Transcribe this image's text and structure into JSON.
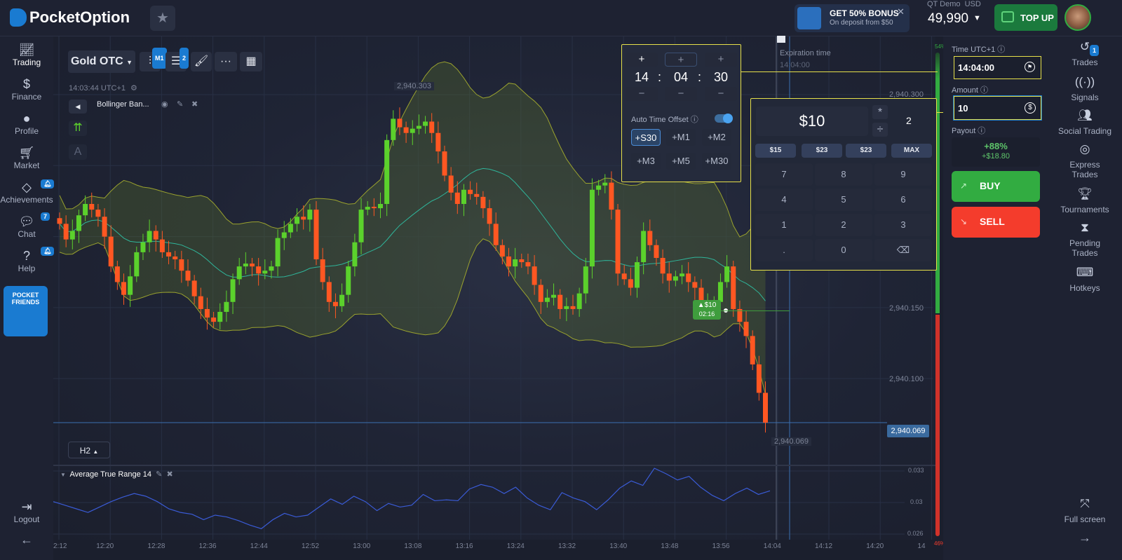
{
  "header": {
    "logo": "PocketOption",
    "bonus_title": "GET 50% BONUS",
    "bonus_sub": "On deposit from $50",
    "account_type": "QT Demo",
    "currency": "USD",
    "balance": "49,990",
    "top_up": "TOP UP"
  },
  "sidebar": {
    "items": [
      {
        "label": "Trading",
        "icon": "chart-line-icon"
      },
      {
        "label": "Finance",
        "icon": "dollar-icon"
      },
      {
        "label": "Profile",
        "icon": "user-icon"
      },
      {
        "label": "Market",
        "icon": "cart-icon"
      },
      {
        "label": "Achievements",
        "icon": "diamond-icon"
      },
      {
        "label": "Chat",
        "icon": "chat-icon",
        "badge": "7"
      },
      {
        "label": "Help",
        "icon": "question-icon"
      }
    ],
    "friends_line1": "POCKET",
    "friends_line2": "FRIENDS",
    "logout": "Logout"
  },
  "right_sidebar": {
    "items": [
      {
        "label": "Trades",
        "badge": "1"
      },
      {
        "label": "Signals"
      },
      {
        "label": "Social Trading"
      },
      {
        "label": "Express",
        "label2": "Trades"
      },
      {
        "label": "Tournaments"
      },
      {
        "label": "Pending",
        "label2": "Trades"
      },
      {
        "label": "Hotkeys"
      }
    ],
    "fullscreen": "Full screen"
  },
  "toolbar": {
    "asset": "Gold OTC",
    "timeframe_badge": "M1",
    "indicators_badge": "2",
    "clock": "14:03:44 UTC+1",
    "indicator_name": "Bollinger Ban...",
    "period": "H2"
  },
  "chart": {
    "max_label": "2,940.303",
    "min_label": "2,940.069",
    "current_price": "2,940.069",
    "price_ticks": [
      "2,940.300",
      "2,940.150",
      "2,940.100"
    ],
    "expiration_label": "Expiration time",
    "expiration_time": "14:04:00",
    "trade_marker_amount": "$10",
    "trade_marker_time": "02:16",
    "sentiment_up": "54%",
    "sentiment_down": "46%",
    "time_ticks": [
      "2:12",
      "12:20",
      "12:28",
      "12:36",
      "12:44",
      "12:52",
      "13:00",
      "13:08",
      "13:16",
      "13:24",
      "13:32",
      "13:40",
      "13:48",
      "13:56",
      "14:04",
      "14:12",
      "14:20",
      "14"
    ]
  },
  "chart_data": {
    "type": "candlestick",
    "interval": "1m",
    "base_price": 2940,
    "close": [
      0.209,
      0.198,
      0.204,
      0.215,
      0.223,
      0.219,
      0.214,
      0.2,
      0.179,
      0.168,
      0.159,
      0.172,
      0.189,
      0.196,
      0.204,
      0.198,
      0.189,
      0.186,
      0.184,
      0.176,
      0.169,
      0.158,
      0.149,
      0.143,
      0.14,
      0.147,
      0.154,
      0.17,
      0.179,
      0.181,
      0.179,
      0.174,
      0.176,
      0.179,
      0.199,
      0.203,
      0.209,
      0.214,
      0.212,
      0.219,
      0.184,
      0.168,
      0.154,
      0.151,
      0.159,
      0.179,
      0.196,
      0.219,
      0.221,
      0.22,
      0.223,
      0.268,
      0.283,
      0.277,
      0.273,
      0.276,
      0.278,
      0.281,
      0.273,
      0.26,
      0.243,
      0.231,
      0.223,
      0.233,
      0.23,
      0.228,
      0.22,
      0.209,
      0.194,
      0.186,
      0.179,
      0.184,
      0.182,
      0.179,
      0.166,
      0.154,
      0.157,
      0.159,
      0.149,
      0.151,
      0.149,
      0.16,
      0.179,
      0.233,
      0.236,
      0.238,
      0.219,
      0.174,
      0.17,
      0.164,
      0.182,
      0.204,
      0.194,
      0.185,
      0.174,
      0.169,
      0.172,
      0.174,
      0.168,
      0.164,
      0.149,
      0.152,
      0.154,
      0.168,
      0.179,
      0.149,
      0.14,
      0.13,
      0.11,
      0.09,
      0.069
    ],
    "indicator": "Bollinger Bands"
  },
  "atr": {
    "title": "Average True Range 14",
    "ticks": [
      "0.033",
      "0.03",
      "0.026"
    ],
    "values": [
      0.0296,
      0.0292,
      0.0288,
      0.0284,
      0.029,
      0.0296,
      0.0301,
      0.0305,
      0.0302,
      0.0296,
      0.0288,
      0.0284,
      0.0282,
      0.0276,
      0.0281,
      0.0279,
      0.0275,
      0.027,
      0.0266,
      0.0276,
      0.0283,
      0.0279,
      0.0281,
      0.029,
      0.0299,
      0.0293,
      0.0302,
      0.0296,
      0.0286,
      0.0294,
      0.029,
      0.0292,
      0.0304,
      0.0297,
      0.0298,
      0.0297,
      0.031,
      0.0315,
      0.0312,
      0.0305,
      0.0312,
      0.03,
      0.0292,
      0.0287,
      0.0306,
      0.03,
      0.0296,
      0.0287,
      0.0298,
      0.0311,
      0.0319,
      0.0314,
      0.0333,
      0.0327,
      0.032,
      0.0324,
      0.0312,
      0.0303,
      0.0297,
      0.0305,
      0.0311,
      0.0304,
      0.0308
    ]
  },
  "time_picker": {
    "hours": "14",
    "minutes": "04",
    "seconds": "30",
    "auto_offset_label": "Auto Time Offset",
    "auto_offset_on": true,
    "offsets": [
      "+S30",
      "+M1",
      "+M2",
      "+M3",
      "+M5",
      "+M30"
    ]
  },
  "keypad": {
    "display": "$10",
    "multiply": "*",
    "divide": "÷",
    "factor": "2",
    "quick": [
      "$15",
      "$23",
      "$23",
      "MAX"
    ],
    "keys": [
      "7",
      "8",
      "9",
      "4",
      "5",
      "6",
      "1",
      "2",
      "3",
      ".",
      "0"
    ]
  },
  "trade": {
    "time_label": "Time UTC+1",
    "time_value": "14:04:00",
    "amount_label": "Amount",
    "amount_value": "10",
    "payout_label": "Payout",
    "payout_percent": "+88%",
    "payout_value": "+$18.80",
    "buy": "BUY",
    "sell": "SELL"
  },
  "colors": {
    "up": "#5bd12c",
    "down": "#ff5722",
    "buy": "#32ac41",
    "sell": "#f43c2c",
    "accent": "#1a7bd1"
  }
}
